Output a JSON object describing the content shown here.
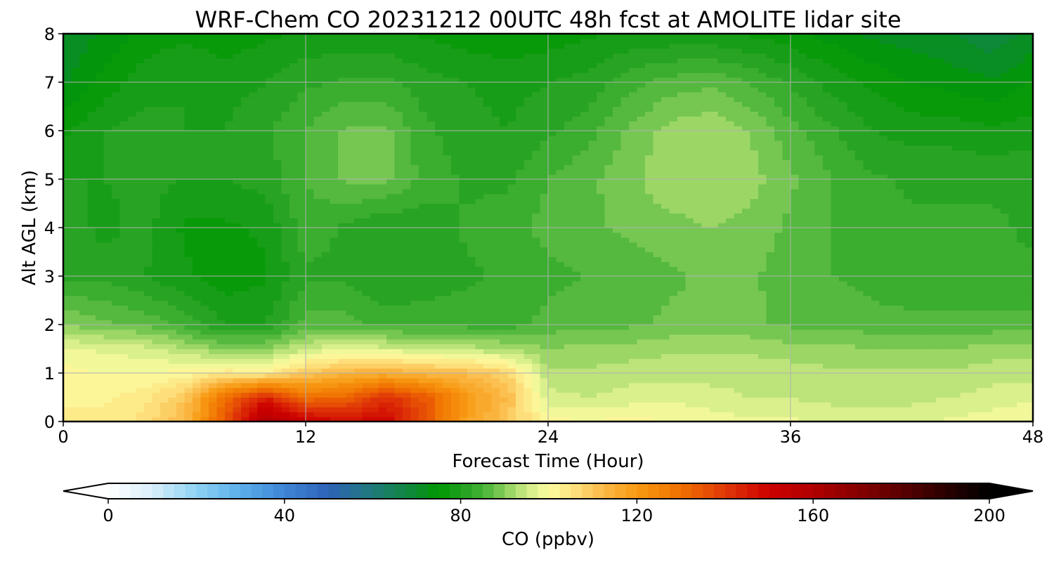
{
  "chart_data": {
    "type": "heatmap",
    "title": "WRF-Chem CO  20231212 00UTC 48h fcst at AMOLITE lidar site",
    "xlabel": "Forecast Time (Hour)",
    "ylabel": "Alt AGL (km)",
    "xlim": [
      0,
      48
    ],
    "ylim": [
      0,
      8
    ],
    "xticks": [
      0,
      12,
      24,
      36,
      48
    ],
    "yticks": [
      0,
      1,
      2,
      3,
      4,
      5,
      6,
      7,
      8
    ],
    "grid": true,
    "x_hours": [
      0,
      2,
      4,
      6,
      8,
      10,
      12,
      14,
      16,
      18,
      20,
      22,
      24,
      26,
      28,
      30,
      32,
      34,
      36,
      38,
      40,
      42,
      44,
      46,
      48
    ],
    "y_km": [
      0,
      0.5,
      1,
      1.5,
      2,
      3,
      4,
      5,
      6,
      7,
      8
    ],
    "z_ppbv": [
      [
        103,
        103,
        106,
        112,
        135,
        160,
        152,
        148,
        150,
        135,
        118,
        110,
        101,
        100,
        101,
        100,
        99,
        98,
        98,
        97,
        97,
        97,
        98,
        99,
        100
      ],
      [
        102,
        102,
        104,
        110,
        130,
        145,
        130,
        132,
        142,
        134,
        120,
        112,
        96,
        95,
        96,
        97,
        96,
        95,
        95,
        94,
        94,
        94,
        95,
        96,
        97
      ],
      [
        101,
        100,
        100,
        101,
        104,
        103,
        110,
        114,
        115,
        113,
        112,
        108,
        93,
        93,
        94,
        94,
        94,
        94,
        94,
        93,
        93,
        93,
        93,
        94,
        94
      ],
      [
        98,
        97,
        96,
        93,
        90,
        90,
        95,
        97,
        96,
        95,
        94,
        92,
        90,
        91,
        91,
        92,
        92,
        92,
        91,
        91,
        90,
        90,
        90,
        91,
        91
      ],
      [
        90,
        88,
        87,
        84,
        80,
        80,
        86,
        86,
        84,
        84,
        84,
        84,
        86,
        87,
        87,
        88,
        88,
        88,
        87,
        87,
        86,
        86,
        86,
        86,
        86
      ],
      [
        82,
        82,
        80,
        78,
        76,
        77,
        82,
        82,
        80,
        81,
        82,
        83,
        84,
        85,
        86,
        87,
        88,
        88,
        86,
        85,
        84,
        83,
        83,
        83,
        83
      ],
      [
        82,
        79,
        81,
        77,
        77,
        78,
        84,
        82,
        80,
        81,
        83,
        84,
        86,
        87,
        88,
        89,
        90,
        89,
        87,
        85,
        84,
        83,
        83,
        83,
        82
      ],
      [
        80,
        80,
        81,
        80,
        80,
        81,
        85,
        88,
        88,
        84,
        82,
        82,
        85,
        87,
        89,
        92,
        92,
        91,
        88,
        85,
        83,
        82,
        82,
        82,
        82
      ],
      [
        77,
        80,
        81,
        80,
        80,
        82,
        85,
        88,
        88,
        83,
        81,
        80,
        82,
        84,
        88,
        91,
        92,
        90,
        86,
        83,
        80,
        79,
        79,
        78,
        79
      ],
      [
        72,
        76,
        79,
        80,
        79,
        80,
        82,
        83,
        83,
        81,
        80,
        79,
        80,
        81,
        84,
        86,
        87,
        85,
        82,
        79,
        77,
        75,
        74,
        73,
        75
      ],
      [
        70,
        73,
        76,
        77,
        76,
        77,
        78,
        78,
        78,
        77,
        76,
        76,
        76,
        77,
        78,
        78,
        78,
        77,
        76,
        74,
        72,
        71,
        70,
        68,
        71
      ]
    ]
  },
  "colorbar": {
    "label": "CO  (ppbv)",
    "ticks": [
      0,
      40,
      80,
      120,
      160,
      200
    ],
    "range": [
      0,
      200
    ],
    "extend": "both"
  }
}
